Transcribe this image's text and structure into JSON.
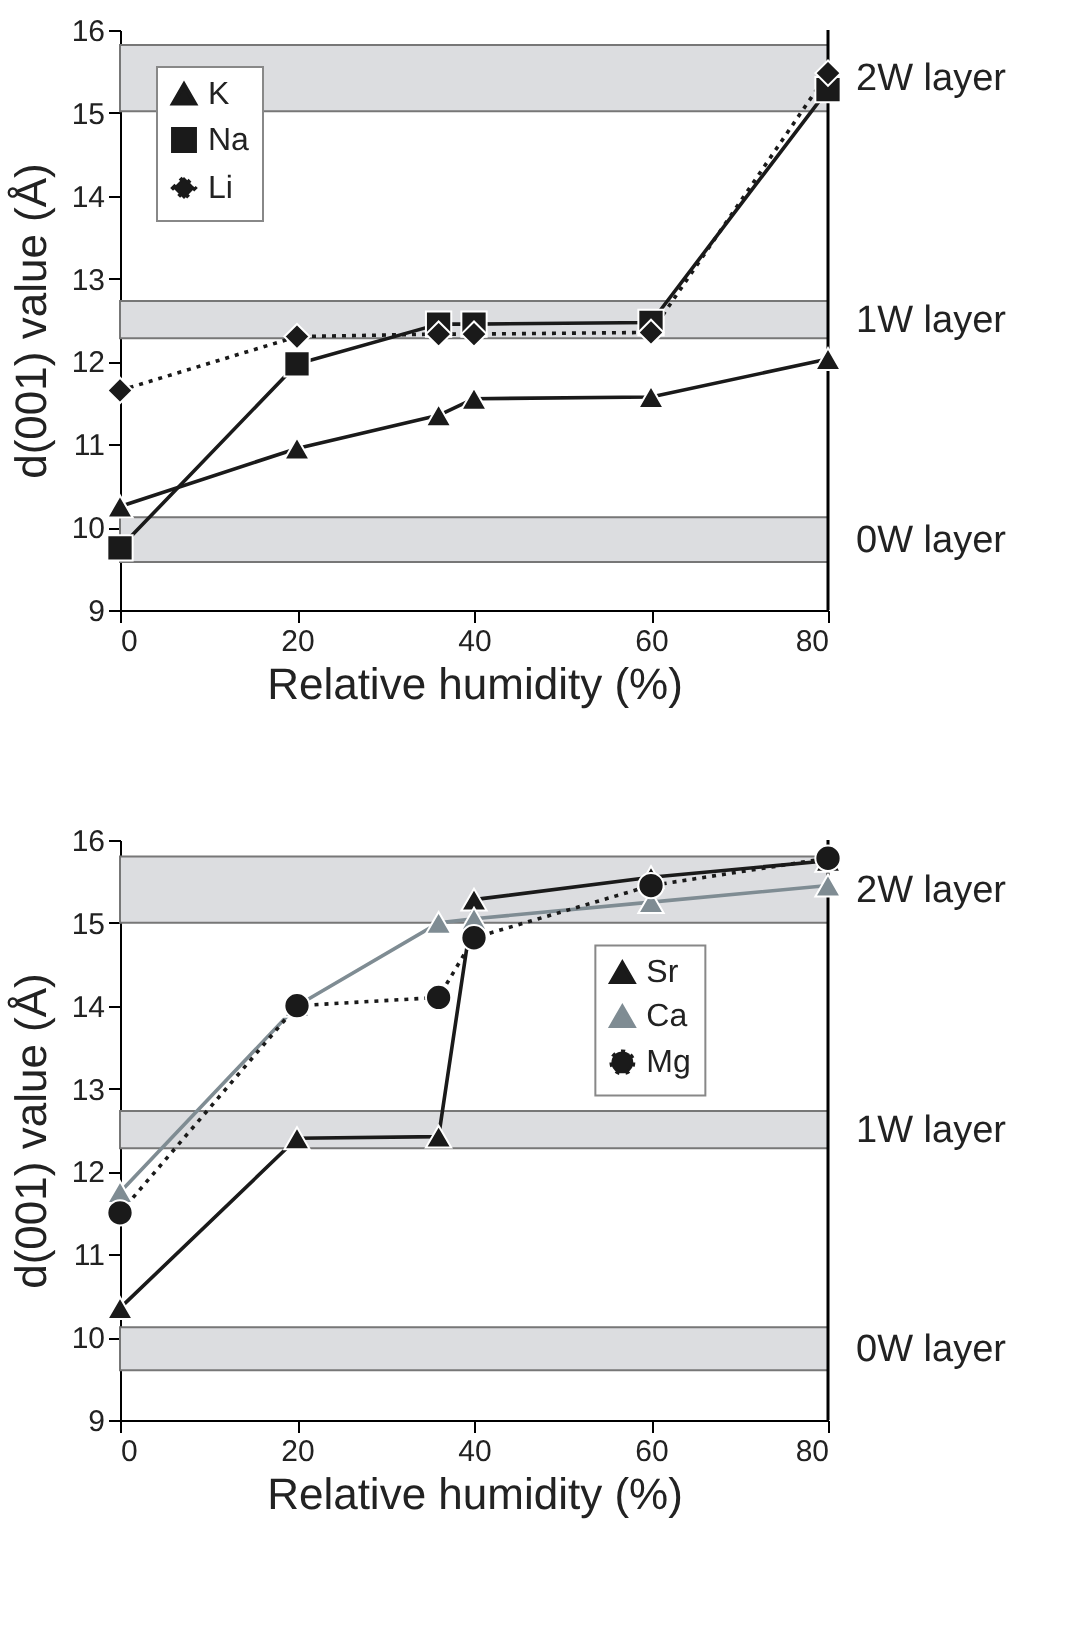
{
  "chart_data": [
    {
      "type": "line",
      "xlabel": "Relative humidity (%)",
      "ylabel": "d(001) value (Å)",
      "x": [
        0,
        20,
        36,
        40,
        60,
        80
      ],
      "xlim": [
        0,
        80
      ],
      "xticks": [
        0,
        20,
        40,
        60,
        80
      ],
      "ylim": [
        9,
        16
      ],
      "yticks": [
        9,
        10,
        11,
        12,
        13,
        14,
        15,
        16
      ],
      "legend": "top left",
      "grid": false,
      "series": [
        {
          "name": "K",
          "color": "#1a1a1a",
          "marker": "triangle",
          "line_style": "solid",
          "values": [
            10.25,
            10.95,
            11.35,
            11.55,
            11.57,
            12.03
          ]
        },
        {
          "name": "Na",
          "color": "#1a1a1a",
          "marker": "square",
          "line_style": "solid",
          "values": [
            9.75,
            11.97,
            12.45,
            12.45,
            12.47,
            15.28
          ]
        },
        {
          "name": "Li",
          "color": "#1a1a1a",
          "marker": "diamond",
          "line_style": "dotted",
          "values": [
            11.65,
            12.3,
            12.33,
            12.33,
            12.35,
            15.48
          ]
        }
      ],
      "bands": [
        {
          "axis": "y",
          "from": 15.02,
          "to": 15.82,
          "label": "2W layer",
          "color": "#dcdde0"
        },
        {
          "axis": "y",
          "from": 12.28,
          "to": 12.73,
          "label": "1W layer",
          "color": "#dcdde0"
        },
        {
          "axis": "y",
          "from": 9.58,
          "to": 10.12,
          "label": "0W layer",
          "color": "#dcdde0"
        }
      ]
    },
    {
      "type": "line",
      "xlabel": "Relative humidity (%)",
      "ylabel": "d(001) value (Å)",
      "x": [
        0,
        20,
        36,
        40,
        60,
        80
      ],
      "xlim": [
        0,
        80
      ],
      "xticks": [
        0,
        20,
        40,
        60,
        80
      ],
      "ylim": [
        9,
        16
      ],
      "yticks": [
        9,
        10,
        11,
        12,
        13,
        14,
        15,
        16
      ],
      "legend": "right",
      "grid": false,
      "series": [
        {
          "name": "Sr",
          "color": "#1a1a1a",
          "marker": "triangle",
          "line_style": "solid",
          "values": [
            10.35,
            12.4,
            12.42,
            15.28,
            15.55,
            15.75
          ]
        },
        {
          "name": "Ca",
          "color": "#7f8c93",
          "marker": "triangle",
          "line_style": "solid",
          "values": [
            11.75,
            14.0,
            15.0,
            15.05,
            15.25,
            15.45
          ]
        },
        {
          "name": "Mg",
          "color": "#1a1a1a",
          "marker": "circle",
          "line_style": "dotted",
          "values": [
            11.5,
            14.0,
            14.1,
            14.82,
            15.45,
            15.78
          ]
        }
      ],
      "bands": [
        {
          "axis": "y",
          "from": 15.0,
          "to": 15.8,
          "label": "2W layer",
          "color": "#dcdde0"
        },
        {
          "axis": "y",
          "from": 12.28,
          "to": 12.73,
          "label": "1W layer",
          "color": "#dcdde0"
        },
        {
          "axis": "y",
          "from": 9.6,
          "to": 10.12,
          "label": "0W layer",
          "color": "#dcdde0"
        }
      ]
    }
  ]
}
